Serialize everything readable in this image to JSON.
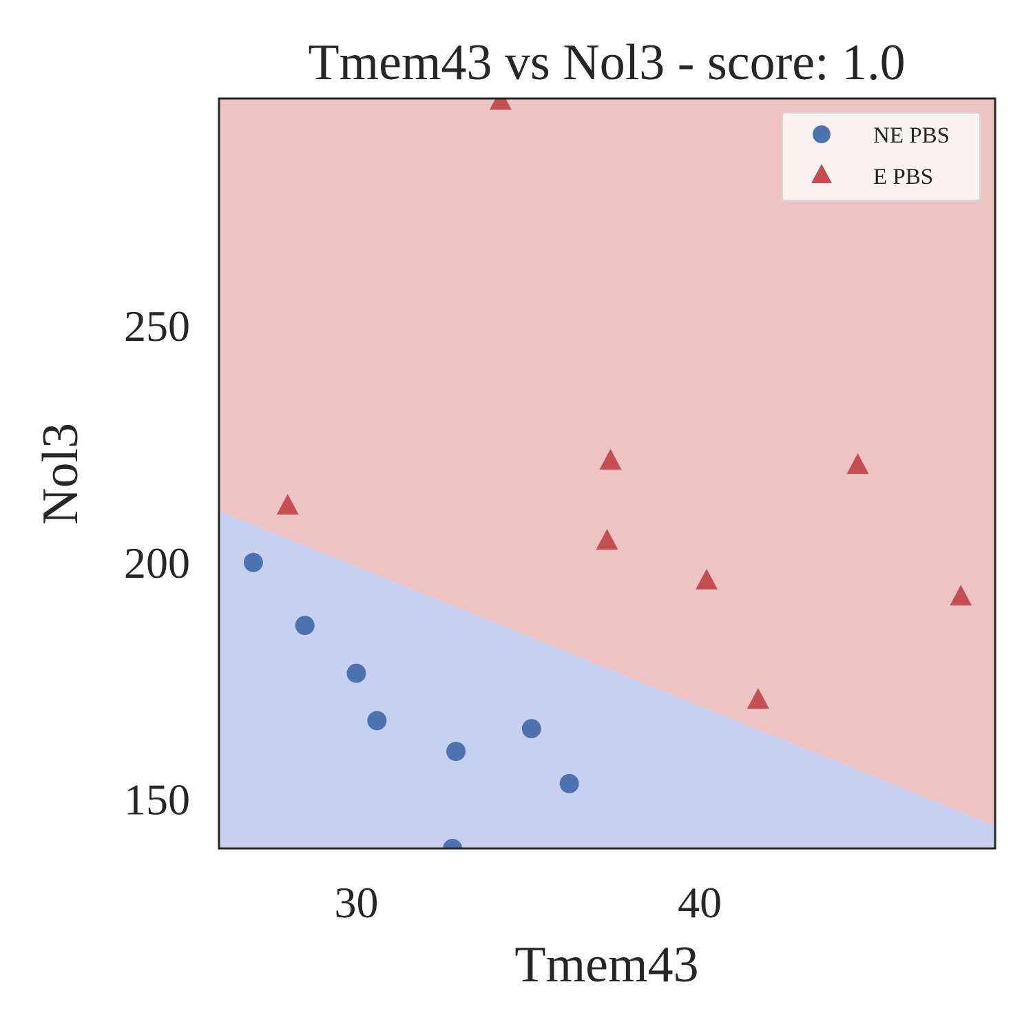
{
  "chart_data": {
    "type": "scatter",
    "title": "Tmem43 vs Nol3 - score: 1.0",
    "xlabel": "Tmem43",
    "ylabel": "Nol3",
    "xlim": [
      26.0,
      48.6
    ],
    "ylim": [
      139.6,
      298.0
    ],
    "xticks": [
      30,
      40
    ],
    "yticks": [
      150,
      200,
      250
    ],
    "grid": false,
    "legend_position": "top-right",
    "decision_boundary": {
      "line": [
        [
          26.0,
          210.9
        ],
        [
          48.6,
          144.4
        ]
      ],
      "lower_region_class": "NE PBS",
      "upper_region_class": "E PBS",
      "lower_color": "#c8d0f1",
      "upper_color": "#edc4c3"
    },
    "series": [
      {
        "name": "NE PBS",
        "marker": "circle",
        "color": "#4c72b0",
        "points": [
          [
            27.0,
            200.0
          ],
          [
            28.5,
            186.7
          ],
          [
            30.0,
            176.6
          ],
          [
            30.6,
            166.6
          ],
          [
            32.8,
            139.6
          ],
          [
            32.9,
            160.1
          ],
          [
            35.1,
            164.9
          ],
          [
            36.2,
            153.3
          ]
        ]
      },
      {
        "name": "E PBS",
        "marker": "triangle",
        "color": "#c44e52",
        "points": [
          [
            28.0,
            212.3
          ],
          [
            34.2,
            297.8
          ],
          [
            37.4,
            221.8
          ],
          [
            37.3,
            204.9
          ],
          [
            40.2,
            196.5
          ],
          [
            41.7,
            171.3
          ],
          [
            44.6,
            220.9
          ],
          [
            47.6,
            193.1
          ]
        ]
      }
    ]
  }
}
